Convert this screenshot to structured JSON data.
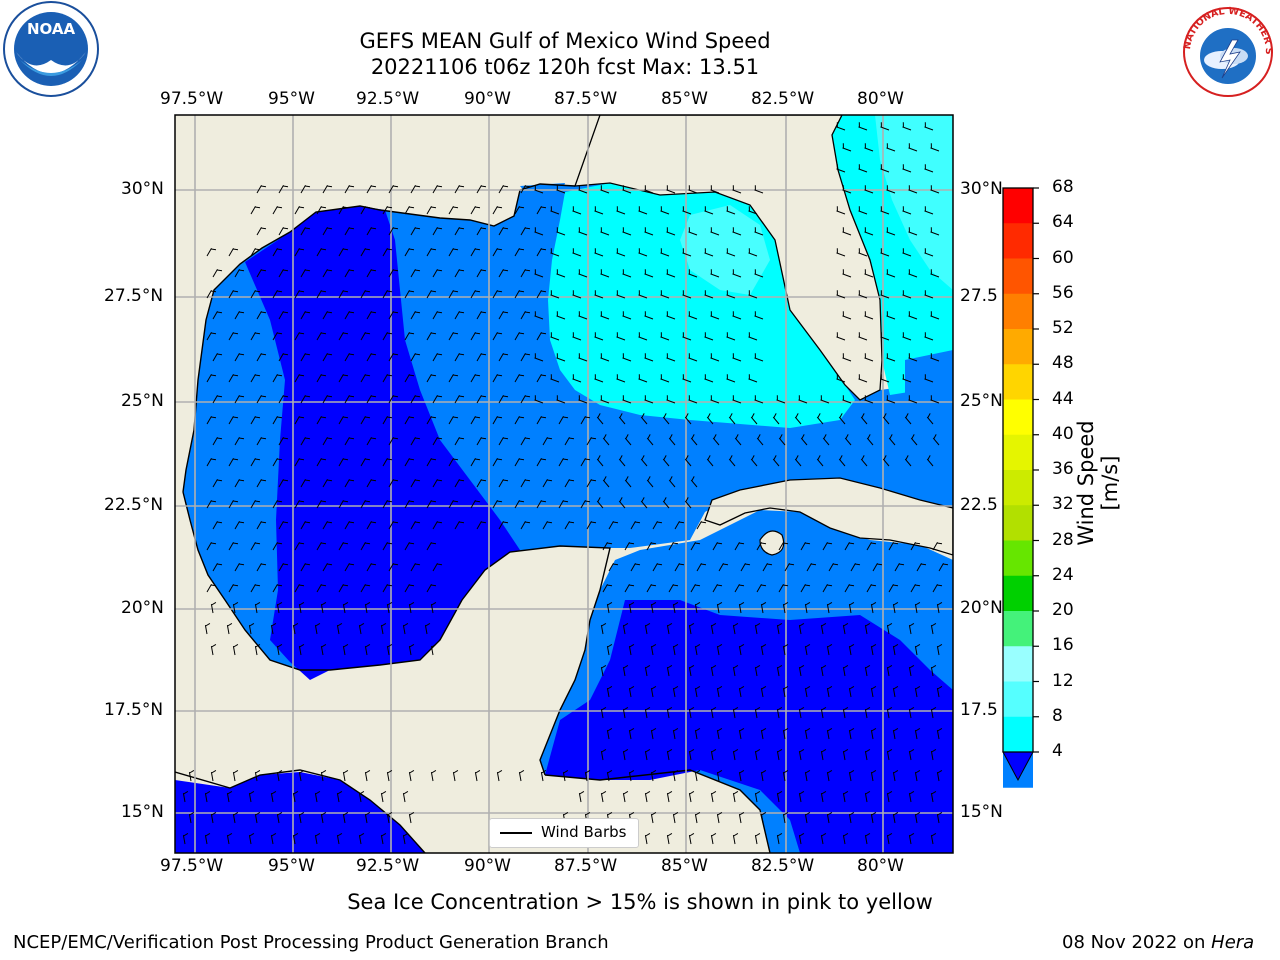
{
  "title": {
    "line1": "GEFS MEAN Gulf of Mexico Wind Speed",
    "line2": "20221106 t06z 120h fcst   Max: 13.51"
  },
  "axes": {
    "lon_ticks": [
      "97.5°W",
      "95°W",
      "92.5°W",
      "90°W",
      "87.5°W",
      "85°W",
      "82.5°W",
      "80°W"
    ],
    "lat_ticks_left": [
      "30°N",
      "27.5°N",
      "25°N",
      "22.5°N",
      "20°N",
      "17.5°N",
      "15°N"
    ],
    "lat_ticks_right": [
      "30°N",
      "27.5",
      "25°N",
      "22.5",
      "20°N",
      "17.5",
      "15°N"
    ]
  },
  "legend": {
    "label": "Wind Barbs"
  },
  "colorbar": {
    "label": "Wind Speed [m/s]",
    "ticks": [
      "68",
      "64",
      "60",
      "56",
      "52",
      "48",
      "44",
      "40",
      "36",
      "32",
      "28",
      "24",
      "20",
      "16",
      "12",
      "8",
      "4"
    ],
    "colors": [
      "#ff0000",
      "#ff2a00",
      "#ff5500",
      "#ff7f00",
      "#ffaa00",
      "#ffd500",
      "#ffff00",
      "#e5f500",
      "#cceb00",
      "#b2e000",
      "#66e600",
      "#00d000",
      "#44f27a",
      "#99ffff",
      "#55ffff",
      "#00ffff",
      "#0080ff"
    ],
    "under_color": "#0000ff"
  },
  "colors": {
    "land": "#efedde",
    "speed_0_4": "#0000ff",
    "speed_4_8": "#0080ff",
    "speed_8_12": "#00ffff",
    "speed_12_16": "#55ffff",
    "grid": "#b0b0b0"
  },
  "caption": "Sea Ice Concentration > 15% is shown in pink to yellow",
  "footer": {
    "left": "NCEP/EMC/Verification Post Processing Product Generation Branch",
    "date": "08 Nov 2022 on ",
    "host": "Hera"
  },
  "logos": {
    "noaa": "NOAA",
    "nws_text": "NATIONAL WEATHER SERVICE"
  }
}
